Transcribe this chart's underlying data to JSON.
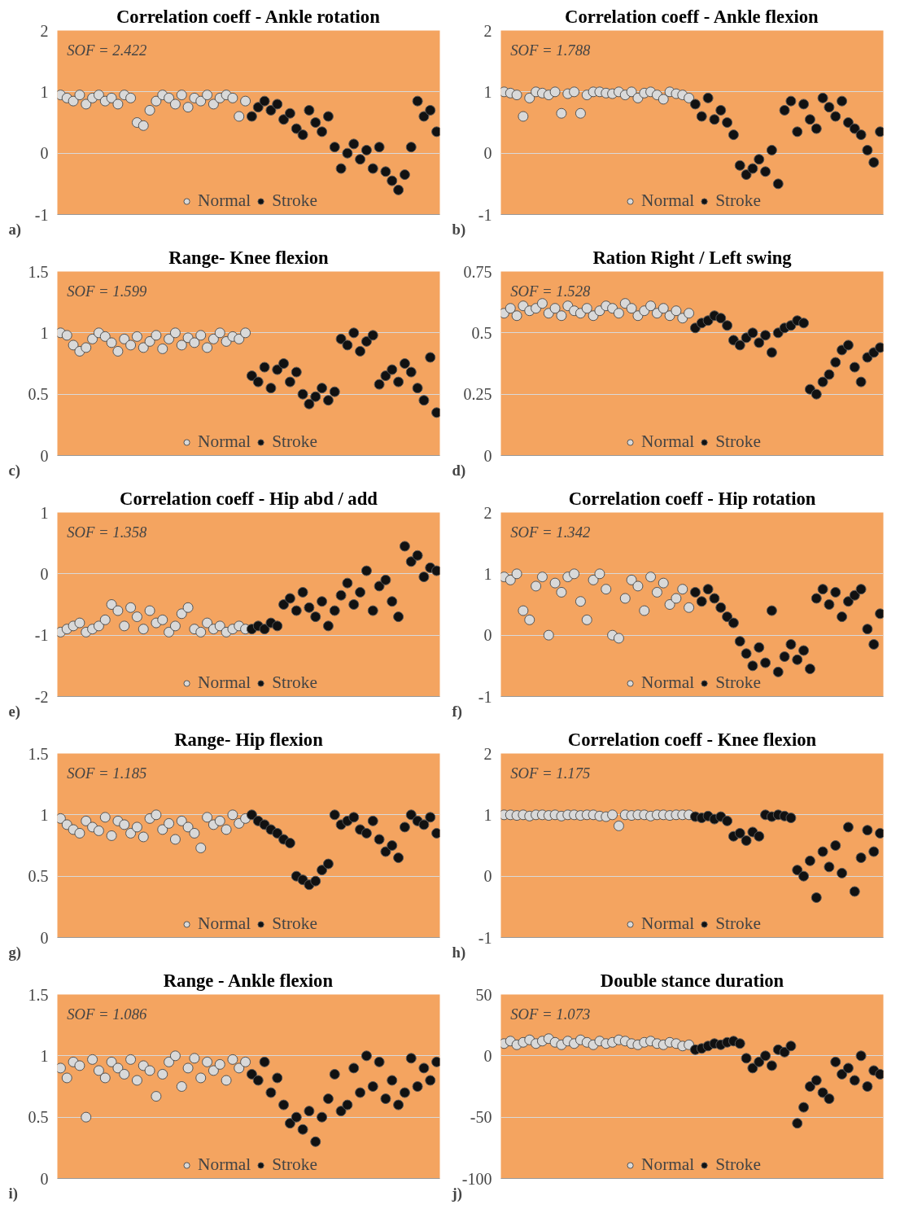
{
  "chart_data": [
    {
      "type": "scatter",
      "title": "Correlation coeff - Ankle rotation",
      "annotations": [
        "SOF = 2.422",
        "a)"
      ],
      "categories": [
        null,
        null,
        null,
        null,
        null,
        null,
        null,
        null,
        null,
        null,
        null,
        null,
        null,
        null,
        null,
        null,
        null,
        null,
        null,
        null,
        null,
        null,
        null,
        null,
        null,
        null,
        null,
        null,
        null,
        null,
        null,
        null,
        null,
        null,
        null,
        null,
        null,
        null,
        null,
        null,
        null,
        null,
        null,
        null,
        null,
        null,
        null,
        null,
        null,
        null,
        null,
        null,
        null,
        null,
        null,
        null,
        null,
        null,
        null,
        null
      ],
      "ylim": [
        -1,
        2
      ],
      "yticks": [
        -1,
        0,
        1,
        2
      ],
      "grid": "y",
      "legend": "bottom",
      "marker": "circle",
      "tick_labels": "y",
      "series": [
        {
          "name": "Normal",
          "color": "#d9d9d9",
          "values": [
            0.95,
            0.9,
            0.85,
            0.95,
            0.8,
            0.9,
            0.95,
            0.85,
            0.9,
            0.8,
            0.95,
            0.9,
            0.5,
            0.45,
            0.7,
            0.85,
            0.95,
            0.9,
            0.8,
            0.95,
            0.75,
            0.9,
            0.85,
            0.95,
            0.8,
            0.9,
            0.95,
            0.9,
            0.6,
            0.85,
            null,
            null,
            null,
            null,
            null,
            null,
            null,
            null,
            null,
            null,
            null,
            null,
            null,
            null,
            null,
            null,
            null,
            null,
            null,
            null,
            null,
            null,
            null,
            null,
            null,
            null,
            null,
            null,
            null,
            null
          ]
        },
        {
          "name": "Stroke",
          "color": "#111111",
          "values": [
            null,
            null,
            null,
            null,
            null,
            null,
            null,
            null,
            null,
            null,
            null,
            null,
            null,
            null,
            null,
            null,
            null,
            null,
            null,
            null,
            null,
            null,
            null,
            null,
            null,
            null,
            null,
            null,
            null,
            null,
            0.6,
            0.75,
            0.85,
            0.7,
            0.8,
            0.55,
            0.65,
            0.4,
            0.3,
            0.7,
            0.5,
            0.35,
            0.6,
            0.1,
            -0.25,
            0.0,
            0.15,
            -0.1,
            0.05,
            -0.25,
            0.1,
            -0.3,
            -0.45,
            -0.6,
            -0.35,
            0.1,
            0.85,
            0.6,
            0.7,
            0.35
          ]
        }
      ]
    },
    {
      "type": "scatter",
      "title": "Correlation coeff - Ankle flexion",
      "annotations": [
        "SOF = 1.788",
        "b)"
      ],
      "categories": [
        null,
        null,
        null,
        null,
        null,
        null,
        null,
        null,
        null,
        null,
        null,
        null,
        null,
        null,
        null,
        null,
        null,
        null,
        null,
        null,
        null,
        null,
        null,
        null,
        null,
        null,
        null,
        null,
        null,
        null,
        null,
        null,
        null,
        null,
        null,
        null,
        null,
        null,
        null,
        null,
        null,
        null,
        null,
        null,
        null,
        null,
        null,
        null,
        null,
        null,
        null,
        null,
        null,
        null,
        null,
        null,
        null,
        null,
        null,
        null
      ],
      "ylim": [
        -1,
        2
      ],
      "yticks": [
        -1,
        0,
        1,
        2
      ],
      "grid": "y",
      "legend": "bottom",
      "marker": "circle",
      "tick_labels": "y",
      "series": [
        {
          "name": "Normal",
          "color": "#d9d9d9",
          "values": [
            1.0,
            0.98,
            0.95,
            0.6,
            0.9,
            1.0,
            0.98,
            0.95,
            1.0,
            0.65,
            0.97,
            1.0,
            0.65,
            0.95,
            1.0,
            1.0,
            0.98,
            0.97,
            1.0,
            0.95,
            1.0,
            0.9,
            0.98,
            1.0,
            0.95,
            0.88,
            1.0,
            0.97,
            0.95,
            0.9,
            null,
            null,
            null,
            null,
            null,
            null,
            null,
            null,
            null,
            null,
            null,
            null,
            null,
            null,
            null,
            null,
            null,
            null,
            null,
            null,
            null,
            null,
            null,
            null,
            null,
            null,
            null,
            null,
            null,
            null
          ]
        },
        {
          "name": "Stroke",
          "color": "#111111",
          "values": [
            null,
            null,
            null,
            null,
            null,
            null,
            null,
            null,
            null,
            null,
            null,
            null,
            null,
            null,
            null,
            null,
            null,
            null,
            null,
            null,
            null,
            null,
            null,
            null,
            null,
            null,
            null,
            null,
            null,
            null,
            0.8,
            0.6,
            0.9,
            0.55,
            0.7,
            0.5,
            0.3,
            -0.2,
            -0.35,
            -0.25,
            -0.1,
            -0.3,
            0.05,
            -0.5,
            0.7,
            0.85,
            0.35,
            0.8,
            0.55,
            0.4,
            0.9,
            0.75,
            0.6,
            0.85,
            0.5,
            0.4,
            0.3,
            0.05,
            -0.15,
            0.35
          ]
        }
      ]
    },
    {
      "type": "scatter",
      "title": "Range- Knee flexion",
      "annotations": [
        "SOF = 1.599",
        "c)"
      ],
      "categories": [
        null,
        null,
        null,
        null,
        null,
        null,
        null,
        null,
        null,
        null,
        null,
        null,
        null,
        null,
        null,
        null,
        null,
        null,
        null,
        null,
        null,
        null,
        null,
        null,
        null,
        null,
        null,
        null,
        null,
        null,
        null,
        null,
        null,
        null,
        null,
        null,
        null,
        null,
        null,
        null,
        null,
        null,
        null,
        null,
        null,
        null,
        null,
        null,
        null,
        null,
        null,
        null,
        null,
        null,
        null,
        null,
        null,
        null,
        null,
        null
      ],
      "ylim": [
        0,
        1.5
      ],
      "yticks": [
        0,
        0.5,
        1,
        1.5
      ],
      "grid": "y",
      "legend": "bottom",
      "marker": "circle",
      "tick_labels": "y",
      "series": [
        {
          "name": "Normal",
          "color": "#d9d9d9",
          "values": [
            1.0,
            0.98,
            0.9,
            0.85,
            0.88,
            0.95,
            1.0,
            0.97,
            0.92,
            0.85,
            0.95,
            0.9,
            0.97,
            0.88,
            0.93,
            0.98,
            0.87,
            0.95,
            1.0,
            0.9,
            0.96,
            0.92,
            0.98,
            0.88,
            0.95,
            1.0,
            0.93,
            0.97,
            0.95,
            1.0,
            null,
            null,
            null,
            null,
            null,
            null,
            null,
            null,
            null,
            null,
            null,
            null,
            null,
            null,
            null,
            null,
            null,
            null,
            null,
            null,
            null,
            null,
            null,
            null,
            null,
            null,
            null,
            null,
            null,
            null
          ]
        },
        {
          "name": "Stroke",
          "color": "#111111",
          "values": [
            null,
            null,
            null,
            null,
            null,
            null,
            null,
            null,
            null,
            null,
            null,
            null,
            null,
            null,
            null,
            null,
            null,
            null,
            null,
            null,
            null,
            null,
            null,
            null,
            null,
            null,
            null,
            null,
            null,
            null,
            0.65,
            0.6,
            0.72,
            0.55,
            0.7,
            0.75,
            0.6,
            0.68,
            0.5,
            0.42,
            0.48,
            0.55,
            0.45,
            0.52,
            0.95,
            0.9,
            1.0,
            0.85,
            0.93,
            0.98,
            0.58,
            0.65,
            0.7,
            0.6,
            0.75,
            0.68,
            0.55,
            0.45,
            0.8,
            0.35
          ]
        }
      ]
    },
    {
      "type": "scatter",
      "title": "Ration Right / Left swing",
      "annotations": [
        "SOF = 1.528",
        "d)"
      ],
      "categories": [
        null,
        null,
        null,
        null,
        null,
        null,
        null,
        null,
        null,
        null,
        null,
        null,
        null,
        null,
        null,
        null,
        null,
        null,
        null,
        null,
        null,
        null,
        null,
        null,
        null,
        null,
        null,
        null,
        null,
        null,
        null,
        null,
        null,
        null,
        null,
        null,
        null,
        null,
        null,
        null,
        null,
        null,
        null,
        null,
        null,
        null,
        null,
        null,
        null,
        null,
        null,
        null,
        null,
        null,
        null,
        null,
        null,
        null,
        null,
        null
      ],
      "ylim": [
        0,
        0.75
      ],
      "yticks": [
        0,
        0.25,
        0.5,
        0.75
      ],
      "grid": "y",
      "legend": "bottom",
      "marker": "circle",
      "tick_labels": "y",
      "series": [
        {
          "name": "Normal",
          "color": "#d9d9d9",
          "values": [
            0.58,
            0.6,
            0.57,
            0.61,
            0.59,
            0.6,
            0.62,
            0.58,
            0.6,
            0.57,
            0.61,
            0.59,
            0.58,
            0.6,
            0.57,
            0.59,
            0.61,
            0.6,
            0.58,
            0.62,
            0.6,
            0.57,
            0.59,
            0.61,
            0.58,
            0.6,
            0.57,
            0.59,
            0.56,
            0.58,
            null,
            null,
            null,
            null,
            null,
            null,
            null,
            null,
            null,
            null,
            null,
            null,
            null,
            null,
            null,
            null,
            null,
            null,
            null,
            null,
            null,
            null,
            null,
            null,
            null,
            null,
            null,
            null,
            null,
            null
          ]
        },
        {
          "name": "Stroke",
          "color": "#111111",
          "values": [
            null,
            null,
            null,
            null,
            null,
            null,
            null,
            null,
            null,
            null,
            null,
            null,
            null,
            null,
            null,
            null,
            null,
            null,
            null,
            null,
            null,
            null,
            null,
            null,
            null,
            null,
            null,
            null,
            null,
            null,
            0.52,
            0.54,
            0.55,
            0.57,
            0.56,
            0.53,
            0.47,
            0.45,
            0.48,
            0.5,
            0.46,
            0.49,
            0.42,
            0.5,
            0.52,
            0.53,
            0.55,
            0.54,
            0.27,
            0.25,
            0.3,
            0.33,
            0.38,
            0.43,
            0.45,
            0.36,
            0.3,
            0.4,
            0.42,
            0.44
          ]
        }
      ]
    },
    {
      "type": "scatter",
      "title": "Correlation coeff - Hip abd / add",
      "annotations": [
        "SOF = 1.358",
        "e)"
      ],
      "categories": [
        null,
        null,
        null,
        null,
        null,
        null,
        null,
        null,
        null,
        null,
        null,
        null,
        null,
        null,
        null,
        null,
        null,
        null,
        null,
        null,
        null,
        null,
        null,
        null,
        null,
        null,
        null,
        null,
        null,
        null,
        null,
        null,
        null,
        null,
        null,
        null,
        null,
        null,
        null,
        null,
        null,
        null,
        null,
        null,
        null,
        null,
        null,
        null,
        null,
        null,
        null,
        null,
        null,
        null,
        null,
        null,
        null,
        null,
        null,
        null
      ],
      "ylim": [
        -2,
        1
      ],
      "yticks": [
        -2,
        -1,
        0,
        1
      ],
      "grid": "y",
      "legend": "bottom",
      "marker": "circle",
      "tick_labels": "y",
      "series": [
        {
          "name": "Normal",
          "color": "#d9d9d9",
          "values": [
            -0.95,
            -0.9,
            -0.85,
            -0.8,
            -0.95,
            -0.9,
            -0.85,
            -0.75,
            -0.5,
            -0.6,
            -0.85,
            -0.55,
            -0.7,
            -0.9,
            -0.6,
            -0.8,
            -0.75,
            -0.95,
            -0.85,
            -0.65,
            -0.55,
            -0.9,
            -0.95,
            -0.8,
            -0.9,
            -0.85,
            -0.95,
            -0.9,
            -0.85,
            -0.9,
            null,
            null,
            null,
            null,
            null,
            null,
            null,
            null,
            null,
            null,
            null,
            null,
            null,
            null,
            null,
            null,
            null,
            null,
            null,
            null,
            null,
            null,
            null,
            null,
            null,
            null,
            null,
            null,
            null,
            null
          ]
        },
        {
          "name": "Stroke",
          "color": "#111111",
          "values": [
            null,
            null,
            null,
            null,
            null,
            null,
            null,
            null,
            null,
            null,
            null,
            null,
            null,
            null,
            null,
            null,
            null,
            null,
            null,
            null,
            null,
            null,
            null,
            null,
            null,
            null,
            null,
            null,
            null,
            null,
            -0.9,
            -0.85,
            -0.9,
            -0.8,
            -0.85,
            -0.5,
            -0.4,
            -0.6,
            -0.3,
            -0.55,
            -0.7,
            -0.45,
            -0.85,
            -0.6,
            -0.35,
            -0.15,
            -0.5,
            -0.3,
            0.05,
            -0.6,
            -0.2,
            -0.1,
            -0.45,
            -0.7,
            0.45,
            0.2,
            0.3,
            -0.05,
            0.1,
            0.05
          ]
        }
      ]
    },
    {
      "type": "scatter",
      "title": "Correlation coeff - Hip rotation",
      "annotations": [
        "SOF = 1.342",
        "f)"
      ],
      "categories": [
        null,
        null,
        null,
        null,
        null,
        null,
        null,
        null,
        null,
        null,
        null,
        null,
        null,
        null,
        null,
        null,
        null,
        null,
        null,
        null,
        null,
        null,
        null,
        null,
        null,
        null,
        null,
        null,
        null,
        null,
        null,
        null,
        null,
        null,
        null,
        null,
        null,
        null,
        null,
        null,
        null,
        null,
        null,
        null,
        null,
        null,
        null,
        null,
        null,
        null,
        null,
        null,
        null,
        null,
        null,
        null,
        null,
        null,
        null,
        null
      ],
      "ylim": [
        -1,
        2
      ],
      "yticks": [
        -1,
        0,
        1,
        2
      ],
      "grid": "y",
      "legend": "bottom",
      "marker": "circle",
      "tick_labels": "y",
      "series": [
        {
          "name": "Normal",
          "color": "#d9d9d9",
          "values": [
            0.95,
            0.9,
            1.0,
            0.4,
            0.25,
            0.8,
            0.95,
            0.0,
            0.85,
            0.7,
            0.95,
            1.0,
            0.55,
            0.25,
            0.9,
            1.0,
            0.75,
            0.0,
            -0.05,
            0.6,
            0.9,
            0.8,
            0.4,
            0.95,
            0.7,
            0.85,
            0.5,
            0.6,
            0.75,
            0.45,
            null,
            null,
            null,
            null,
            null,
            null,
            null,
            null,
            null,
            null,
            null,
            null,
            null,
            null,
            null,
            null,
            null,
            null,
            null,
            null,
            null,
            null,
            null,
            null,
            null,
            null,
            null,
            null,
            null,
            null
          ]
        },
        {
          "name": "Stroke",
          "color": "#111111",
          "values": [
            null,
            null,
            null,
            null,
            null,
            null,
            null,
            null,
            null,
            null,
            null,
            null,
            null,
            null,
            null,
            null,
            null,
            null,
            null,
            null,
            null,
            null,
            null,
            null,
            null,
            null,
            null,
            null,
            null,
            null,
            0.7,
            0.55,
            0.75,
            0.6,
            0.45,
            0.3,
            0.2,
            -0.1,
            -0.3,
            -0.5,
            -0.2,
            -0.45,
            0.4,
            -0.6,
            -0.35,
            -0.15,
            -0.4,
            -0.25,
            -0.55,
            0.6,
            0.75,
            0.5,
            0.7,
            0.3,
            0.55,
            0.65,
            0.75,
            0.1,
            -0.15,
            0.35
          ]
        }
      ]
    },
    {
      "type": "scatter",
      "title": "Range- Hip flexion",
      "annotations": [
        "SOF = 1.185",
        "g)"
      ],
      "categories": [
        null,
        null,
        null,
        null,
        null,
        null,
        null,
        null,
        null,
        null,
        null,
        null,
        null,
        null,
        null,
        null,
        null,
        null,
        null,
        null,
        null,
        null,
        null,
        null,
        null,
        null,
        null,
        null,
        null,
        null,
        null,
        null,
        null,
        null,
        null,
        null,
        null,
        null,
        null,
        null,
        null,
        null,
        null,
        null,
        null,
        null,
        null,
        null,
        null,
        null,
        null,
        null,
        null,
        null,
        null,
        null,
        null,
        null,
        null,
        null
      ],
      "ylim": [
        0,
        1.5
      ],
      "yticks": [
        0,
        0.5,
        1,
        1.5
      ],
      "grid": "y",
      "legend": "bottom",
      "marker": "circle",
      "tick_labels": "y",
      "series": [
        {
          "name": "Normal",
          "color": "#d9d9d9",
          "values": [
            0.97,
            0.92,
            0.88,
            0.85,
            0.95,
            0.9,
            0.87,
            0.98,
            0.83,
            0.95,
            0.92,
            0.85,
            0.9,
            0.82,
            0.97,
            1.0,
            0.88,
            0.93,
            0.8,
            0.95,
            0.9,
            0.85,
            0.73,
            0.98,
            0.92,
            0.95,
            0.88,
            1.0,
            0.93,
            0.97,
            null,
            null,
            null,
            null,
            null,
            null,
            null,
            null,
            null,
            null,
            null,
            null,
            null,
            null,
            null,
            null,
            null,
            null,
            null,
            null,
            null,
            null,
            null,
            null,
            null,
            null,
            null,
            null,
            null,
            null
          ]
        },
        {
          "name": "Stroke",
          "color": "#111111",
          "values": [
            null,
            null,
            null,
            null,
            null,
            null,
            null,
            null,
            null,
            null,
            null,
            null,
            null,
            null,
            null,
            null,
            null,
            null,
            null,
            null,
            null,
            null,
            null,
            null,
            null,
            null,
            null,
            null,
            null,
            null,
            1.0,
            0.95,
            0.92,
            0.88,
            0.85,
            0.8,
            0.77,
            0.5,
            0.47,
            0.43,
            0.46,
            0.55,
            0.6,
            1.0,
            0.92,
            0.95,
            0.98,
            0.88,
            0.85,
            0.95,
            0.8,
            0.7,
            0.75,
            0.65,
            0.9,
            1.0,
            0.95,
            0.92,
            0.98,
            0.85
          ]
        }
      ]
    },
    {
      "type": "scatter",
      "title": "Correlation coeff - Knee flexion",
      "annotations": [
        "SOF = 1.175",
        "h)"
      ],
      "categories": [
        null,
        null,
        null,
        null,
        null,
        null,
        null,
        null,
        null,
        null,
        null,
        null,
        null,
        null,
        null,
        null,
        null,
        null,
        null,
        null,
        null,
        null,
        null,
        null,
        null,
        null,
        null,
        null,
        null,
        null,
        null,
        null,
        null,
        null,
        null,
        null,
        null,
        null,
        null,
        null,
        null,
        null,
        null,
        null,
        null,
        null,
        null,
        null,
        null,
        null,
        null,
        null,
        null,
        null,
        null,
        null,
        null,
        null,
        null,
        null
      ],
      "ylim": [
        -1,
        2
      ],
      "yticks": [
        -1,
        0,
        1,
        2
      ],
      "grid": "y",
      "legend": "bottom",
      "marker": "circle",
      "tick_labels": "y",
      "series": [
        {
          "name": "Normal",
          "color": "#d9d9d9",
          "values": [
            1.0,
            1.0,
            0.99,
            1.0,
            0.98,
            1.0,
            1.0,
            0.99,
            1.0,
            0.98,
            1.0,
            1.0,
            0.99,
            1.0,
            1.0,
            0.98,
            0.97,
            1.0,
            0.82,
            1.0,
            0.99,
            1.0,
            1.0,
            0.98,
            1.0,
            1.0,
            0.99,
            1.0,
            1.0,
            1.0,
            null,
            null,
            null,
            null,
            null,
            null,
            null,
            null,
            null,
            null,
            null,
            null,
            null,
            null,
            null,
            null,
            null,
            null,
            null,
            null,
            null,
            null,
            null,
            null,
            null,
            null,
            null,
            null,
            null,
            null
          ]
        },
        {
          "name": "Stroke",
          "color": "#111111",
          "values": [
            null,
            null,
            null,
            null,
            null,
            null,
            null,
            null,
            null,
            null,
            null,
            null,
            null,
            null,
            null,
            null,
            null,
            null,
            null,
            null,
            null,
            null,
            null,
            null,
            null,
            null,
            null,
            null,
            null,
            null,
            0.97,
            0.95,
            0.98,
            0.93,
            0.97,
            0.9,
            0.65,
            0.7,
            0.58,
            0.72,
            0.65,
            1.0,
            0.97,
            1.0,
            0.98,
            0.95,
            0.1,
            0.0,
            0.25,
            -0.35,
            0.4,
            0.15,
            0.5,
            0.05,
            0.8,
            -0.25,
            0.3,
            0.75,
            0.4,
            0.7
          ]
        }
      ]
    },
    {
      "type": "scatter",
      "title": "Range - Ankle flexion",
      "annotations": [
        "SOF = 1.086",
        "i)"
      ],
      "categories": [
        null,
        null,
        null,
        null,
        null,
        null,
        null,
        null,
        null,
        null,
        null,
        null,
        null,
        null,
        null,
        null,
        null,
        null,
        null,
        null,
        null,
        null,
        null,
        null,
        null,
        null,
        null,
        null,
        null,
        null,
        null,
        null,
        null,
        null,
        null,
        null,
        null,
        null,
        null,
        null,
        null,
        null,
        null,
        null,
        null,
        null,
        null,
        null,
        null,
        null,
        null,
        null,
        null,
        null,
        null,
        null,
        null,
        null,
        null,
        null
      ],
      "ylim": [
        0,
        1.5
      ],
      "yticks": [
        0,
        0.5,
        1,
        1.5
      ],
      "grid": "y",
      "legend": "bottom",
      "marker": "circle",
      "tick_labels": "y",
      "series": [
        {
          "name": "Normal",
          "color": "#d9d9d9",
          "values": [
            0.9,
            0.82,
            0.95,
            0.92,
            0.5,
            0.97,
            0.88,
            0.82,
            0.95,
            0.9,
            0.85,
            0.97,
            0.8,
            0.92,
            0.88,
            0.67,
            0.85,
            0.95,
            1.0,
            0.75,
            0.9,
            0.98,
            0.82,
            0.95,
            0.88,
            0.93,
            0.8,
            0.97,
            0.9,
            0.95,
            null,
            null,
            null,
            null,
            null,
            null,
            null,
            null,
            null,
            null,
            null,
            null,
            null,
            null,
            null,
            null,
            null,
            null,
            null,
            null,
            null,
            null,
            null,
            null,
            null,
            null,
            null,
            null,
            null,
            null
          ]
        },
        {
          "name": "Stroke",
          "color": "#111111",
          "values": [
            null,
            null,
            null,
            null,
            null,
            null,
            null,
            null,
            null,
            null,
            null,
            null,
            null,
            null,
            null,
            null,
            null,
            null,
            null,
            null,
            null,
            null,
            null,
            null,
            null,
            null,
            null,
            null,
            null,
            null,
            0.85,
            0.8,
            0.95,
            0.7,
            0.82,
            0.6,
            0.45,
            0.5,
            0.4,
            0.55,
            0.3,
            0.5,
            0.65,
            0.85,
            0.55,
            0.6,
            0.9,
            0.7,
            1.0,
            0.75,
            0.95,
            0.65,
            0.8,
            0.6,
            0.7,
            0.98,
            0.75,
            0.9,
            0.8,
            0.95
          ]
        }
      ]
    },
    {
      "type": "scatter",
      "title": "Double stance duration",
      "annotations": [
        "SOF = 1.073",
        "j)"
      ],
      "categories": [
        null,
        null,
        null,
        null,
        null,
        null,
        null,
        null,
        null,
        null,
        null,
        null,
        null,
        null,
        null,
        null,
        null,
        null,
        null,
        null,
        null,
        null,
        null,
        null,
        null,
        null,
        null,
        null,
        null,
        null,
        null,
        null,
        null,
        null,
        null,
        null,
        null,
        null,
        null,
        null,
        null,
        null,
        null,
        null,
        null,
        null,
        null,
        null,
        null,
        null,
        null,
        null,
        null,
        null,
        null,
        null,
        null,
        null,
        null,
        null
      ],
      "ylim": [
        -100,
        50
      ],
      "yticks": [
        -100,
        -50,
        0,
        50
      ],
      "grid": "y",
      "legend": "bottom",
      "marker": "circle",
      "tick_labels": "y",
      "series": [
        {
          "name": "Normal",
          "color": "#d9d9d9",
          "values": [
            10,
            12,
            9,
            11,
            13,
            10,
            12,
            14,
            11,
            9,
            12,
            10,
            13,
            11,
            9,
            12,
            10,
            11,
            13,
            12,
            10,
            9,
            11,
            12,
            10,
            9,
            11,
            10,
            8,
            9,
            null,
            null,
            null,
            null,
            null,
            null,
            null,
            null,
            null,
            null,
            null,
            null,
            null,
            null,
            null,
            null,
            null,
            null,
            null,
            null,
            null,
            null,
            null,
            null,
            null,
            null,
            null,
            null,
            null,
            null
          ]
        },
        {
          "name": "Stroke",
          "color": "#111111",
          "values": [
            null,
            null,
            null,
            null,
            null,
            null,
            null,
            null,
            null,
            null,
            null,
            null,
            null,
            null,
            null,
            null,
            null,
            null,
            null,
            null,
            null,
            null,
            null,
            null,
            null,
            null,
            null,
            null,
            null,
            null,
            5,
            6,
            8,
            10,
            9,
            11,
            12,
            10,
            -2,
            -10,
            -5,
            0,
            -8,
            5,
            3,
            8,
            -55,
            -42,
            -25,
            -20,
            -30,
            -35,
            -5,
            -15,
            -10,
            -20,
            0,
            -25,
            -12,
            -15
          ]
        }
      ]
    }
  ]
}
